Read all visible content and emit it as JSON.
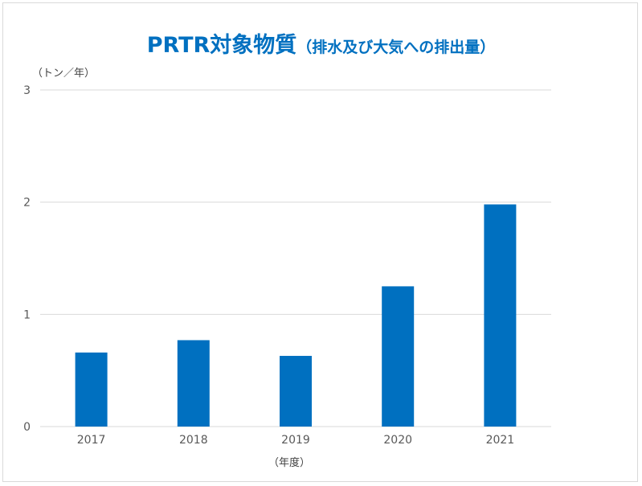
{
  "chart_data": {
    "type": "bar",
    "title": "PRTR対象物質",
    "subtitle": "（排水及び大気への排出量）",
    "ylabel": "（トン／年）",
    "xlabel": "（年度）",
    "categories": [
      "2017",
      "2018",
      "2019",
      "2020",
      "2021"
    ],
    "values": [
      0.66,
      0.77,
      0.63,
      1.25,
      1.98
    ],
    "ylim": [
      0,
      3
    ],
    "yticks": [
      "0",
      "1",
      "2",
      "3"
    ],
    "grid": true,
    "legend": "none",
    "colors": {
      "bar": "#0070c0",
      "title": "#0070c0",
      "grid": "#d9d9d9"
    }
  }
}
